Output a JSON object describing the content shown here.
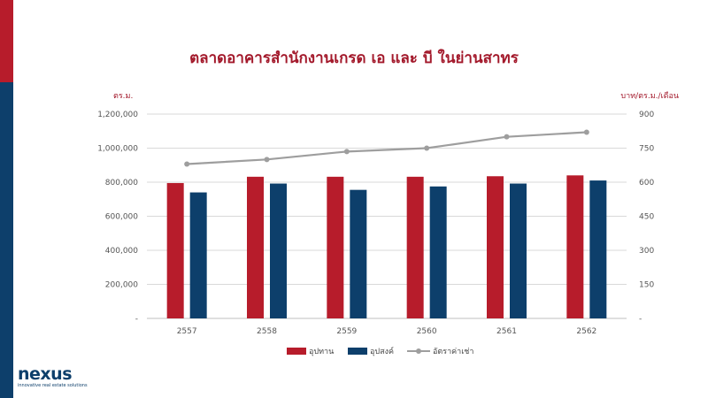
{
  "title": "ตลาดอาคารสำนักงานเกรด เอ และ บี ในย่านสาทร",
  "unit_left": "ตร.ม.",
  "unit_right": "บาท/ตร.ม./เดือน",
  "logo": {
    "word": "nexus",
    "tagline": "innovative real estate solutions"
  },
  "colors": {
    "supply": "#b71c2b",
    "demand": "#0d3f6b",
    "rent": "#9e9e9e",
    "accent_red": "#b71c2b",
    "accent_blue": "#0d3f6b"
  },
  "chart_data": {
    "type": "bar",
    "categories": [
      "2557",
      "2558",
      "2559",
      "2560",
      "2561",
      "2562"
    ],
    "series": [
      {
        "name": "อุปทาน",
        "type": "bar",
        "axis": "left",
        "values": [
          795000,
          832000,
          832000,
          832000,
          835000,
          840000
        ]
      },
      {
        "name": "อุปสงค์",
        "type": "bar",
        "axis": "left",
        "values": [
          740000,
          792000,
          755000,
          775000,
          792000,
          810000
        ]
      },
      {
        "name": "อัตราค่าเช่า",
        "type": "line",
        "axis": "right",
        "values": [
          680,
          700,
          735,
          750,
          800,
          820
        ]
      }
    ],
    "ylim_left": [
      0,
      1200000
    ],
    "ylim_right": [
      0,
      900
    ],
    "yticks_left": [
      "-",
      "200,000",
      "400,000",
      "600,000",
      "800,000",
      "1,000,000",
      "1,200,000"
    ],
    "yticks_right": [
      "-",
      "150",
      "300",
      "450",
      "600",
      "750",
      "900"
    ],
    "grid": true,
    "legend": "bottom"
  }
}
